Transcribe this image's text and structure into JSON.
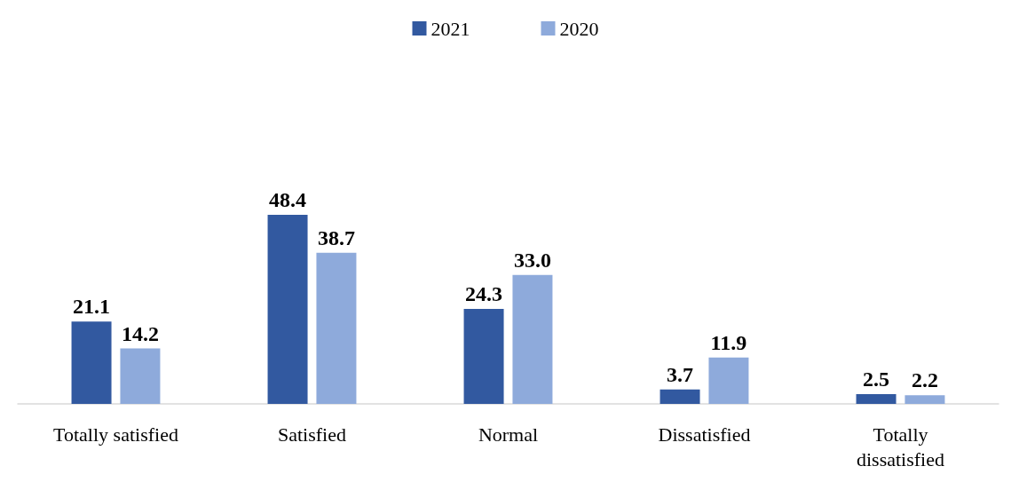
{
  "chart_data": {
    "type": "bar",
    "categories": [
      "Totally satisfied",
      "Satisfied",
      "Normal",
      "Dissatisfied",
      "Totally dissatisfied"
    ],
    "series": [
      {
        "name": "2021",
        "color": "#3259a0",
        "values": [
          21.1,
          48.4,
          24.3,
          3.7,
          2.5
        ]
      },
      {
        "name": "2020",
        "color": "#8eaadb",
        "values": [
          14.2,
          38.7,
          33.0,
          11.9,
          2.2
        ],
        "value_labels": [
          "14.2",
          "38.7",
          "33.0",
          "11.9",
          "2.2"
        ]
      }
    ],
    "data_labels": true,
    "legend": "top"
  }
}
